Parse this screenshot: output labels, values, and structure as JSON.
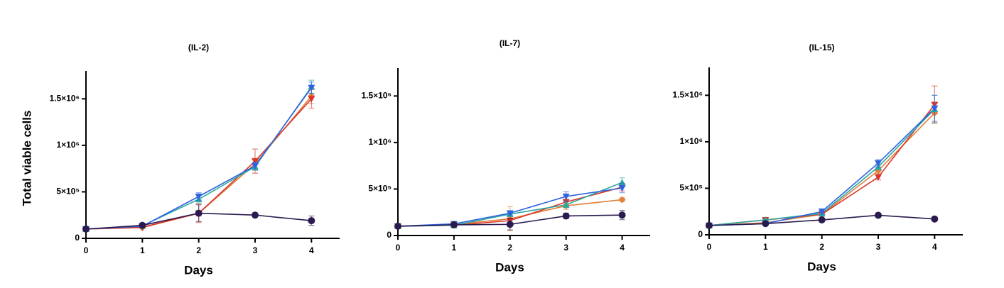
{
  "chart_data": [
    {
      "type": "line",
      "title": "(IL-2)",
      "xlabel": "Days",
      "ylabel": "Total viable cells",
      "x": [
        0,
        1,
        2,
        3,
        4
      ],
      "xlim": [
        0,
        4.5
      ],
      "xticks": [
        0,
        1,
        2,
        3,
        4
      ],
      "ylim": [
        0,
        1800000
      ],
      "yticks": [
        0,
        {
          "value": 500000,
          "label": "5×10⁵"
        },
        {
          "value": 1000000,
          "label": "1×10⁶"
        },
        {
          "value": 1500000,
          "label": "1.5×10⁶"
        }
      ],
      "series": [
        {
          "color": "#e0803a",
          "marker": "diamond",
          "values": [
            100000,
            115000,
            270000,
            800000,
            1530000
          ],
          "errors": [
            5000,
            8000,
            30000,
            60000,
            80000
          ]
        },
        {
          "color": "#d9342b",
          "marker": "triangle-down",
          "values": [
            100000,
            120000,
            270000,
            830000,
            1500000
          ],
          "errors": [
            5000,
            8000,
            100000,
            130000,
            100000
          ]
        },
        {
          "color": "#2aa9a0",
          "marker": "triangle",
          "values": [
            100000,
            135000,
            420000,
            770000,
            1630000
          ],
          "errors": [
            5000,
            8000,
            40000,
            40000,
            70000
          ]
        },
        {
          "color": "#2f62e0",
          "marker": "triangle-down",
          "values": [
            100000,
            130000,
            450000,
            780000,
            1620000
          ],
          "errors": [
            5000,
            8000,
            40000,
            40000,
            60000
          ]
        },
        {
          "color": "#2a1a4f",
          "marker": "circle",
          "values": [
            100000,
            140000,
            270000,
            250000,
            190000
          ],
          "errors": [
            5000,
            10000,
            90000,
            20000,
            50000
          ]
        }
      ]
    },
    {
      "type": "line",
      "title": "(IL-7)",
      "xlabel": "Days",
      "x": [
        0,
        1,
        2,
        3,
        4
      ],
      "xlim": [
        0,
        4.5
      ],
      "xticks": [
        0,
        1,
        2,
        3,
        4
      ],
      "ylim": [
        0,
        1800000
      ],
      "yticks": [
        0,
        {
          "value": 500000,
          "label": "5×10⁵"
        },
        {
          "value": 1000000,
          "label": "1×10⁶"
        },
        {
          "value": 1500000,
          "label": "1.5×10⁶"
        }
      ],
      "series": [
        {
          "color": "#e0803a",
          "marker": "diamond",
          "values": [
            100000,
            120000,
            180000,
            320000,
            385000
          ],
          "errors": [
            5000,
            20000,
            130000,
            40000,
            20000
          ]
        },
        {
          "color": "#d9342b",
          "marker": "triangle-down",
          "values": [
            100000,
            110000,
            160000,
            360000,
            520000
          ],
          "errors": [
            5000,
            10000,
            50000,
            30000,
            40000
          ]
        },
        {
          "color": "#2aa9a0",
          "marker": "triangle",
          "values": [
            100000,
            110000,
            230000,
            330000,
            570000
          ],
          "errors": [
            5000,
            10000,
            20000,
            30000,
            50000
          ]
        },
        {
          "color": "#2f62e0",
          "marker": "triangle-down",
          "values": [
            100000,
            125000,
            240000,
            420000,
            510000
          ],
          "errors": [
            5000,
            10000,
            20000,
            50000,
            50000
          ]
        },
        {
          "color": "#2a1a4f",
          "marker": "circle",
          "values": [
            100000,
            115000,
            120000,
            210000,
            220000
          ],
          "errors": [
            5000,
            10000,
            60000,
            30000,
            50000
          ]
        }
      ]
    },
    {
      "type": "line",
      "title": "(IL-15)",
      "xlabel": "Days",
      "x": [
        0,
        1,
        2,
        3,
        4
      ],
      "xlim": [
        0,
        4.5
      ],
      "xticks": [
        0,
        1,
        2,
        3,
        4
      ],
      "ylim": [
        0,
        1800000
      ],
      "yticks": [
        0,
        {
          "value": 500000,
          "label": "5×10⁵"
        },
        {
          "value": 1000000,
          "label": "1×10⁶"
        },
        {
          "value": 1500000,
          "label": "1.5×10⁶"
        }
      ],
      "series": [
        {
          "color": "#e0803a",
          "marker": "diamond",
          "values": [
            100000,
            130000,
            220000,
            690000,
            1310000
          ],
          "errors": [
            5000,
            10000,
            20000,
            30000,
            100000
          ]
        },
        {
          "color": "#d9342b",
          "marker": "triangle-down",
          "values": [
            100000,
            160000,
            220000,
            620000,
            1400000
          ],
          "errors": [
            5000,
            10000,
            20000,
            30000,
            200000
          ]
        },
        {
          "color": "#2aa9a0",
          "marker": "triangle",
          "values": [
            100000,
            160000,
            230000,
            730000,
            1350000
          ],
          "errors": [
            5000,
            10000,
            20000,
            30000,
            150000
          ]
        },
        {
          "color": "#2f62e0",
          "marker": "triangle-down",
          "values": [
            100000,
            120000,
            250000,
            770000,
            1360000
          ],
          "errors": [
            5000,
            10000,
            30000,
            40000,
            140000
          ]
        },
        {
          "color": "#2a1a4f",
          "marker": "circle",
          "values": [
            100000,
            120000,
            160000,
            210000,
            170000
          ],
          "errors": [
            5000,
            10000,
            20000,
            20000,
            10000
          ]
        }
      ]
    }
  ]
}
